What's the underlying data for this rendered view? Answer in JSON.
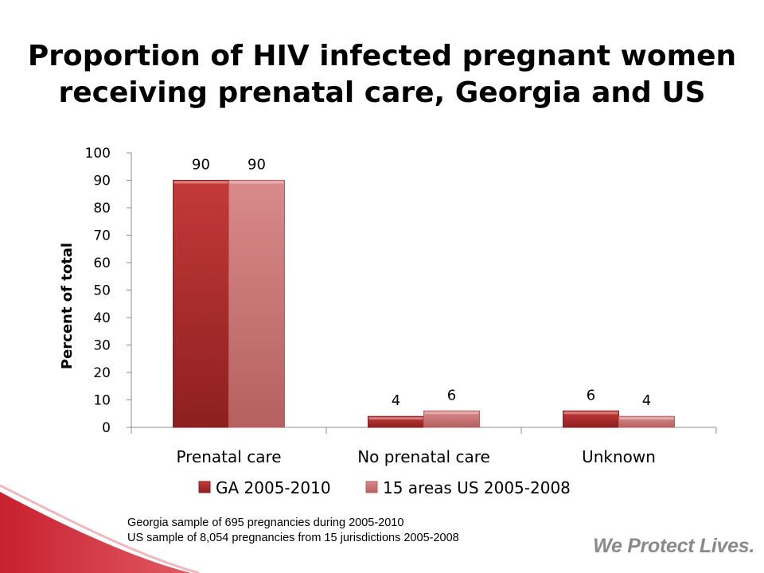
{
  "slide": {
    "title_line1": "Proportion of HIV infected pregnant women",
    "title_line2": "receiving prenatal care, Georgia and US",
    "footnote_line1": "Georgia sample of 695 pregnancies during 2005-2010",
    "footnote_line2": "US sample of 8,054 pregnancies from 15 jurisdictions 2005-2008",
    "tagline": "We Protect Lives."
  },
  "colors": {
    "series_ga": "#c43a3a",
    "series_ga_dark": "#8e1f1f",
    "series_us": "#d98a8a",
    "series_us_dark": "#b56060",
    "swoosh": "#c8202f",
    "axis": "#8c8c8c"
  },
  "chart_data": {
    "type": "bar",
    "title": "Proportion of HIV infected pregnant women receiving prenatal care, Georgia and US",
    "xlabel": "",
    "ylabel": "Percent of total",
    "ylim": [
      0,
      100
    ],
    "yticks": [
      0,
      10,
      20,
      30,
      40,
      50,
      60,
      70,
      80,
      90,
      100
    ],
    "categories": [
      "Prenatal care",
      "No prenatal care",
      "Unknown"
    ],
    "series": [
      {
        "name": "GA 2005-2010",
        "values": [
          90,
          4,
          6
        ]
      },
      {
        "name": "15 areas US 2005-2008",
        "values": [
          90,
          6,
          4
        ]
      }
    ],
    "data_labels": true,
    "grid": false,
    "legend": "bottom"
  }
}
